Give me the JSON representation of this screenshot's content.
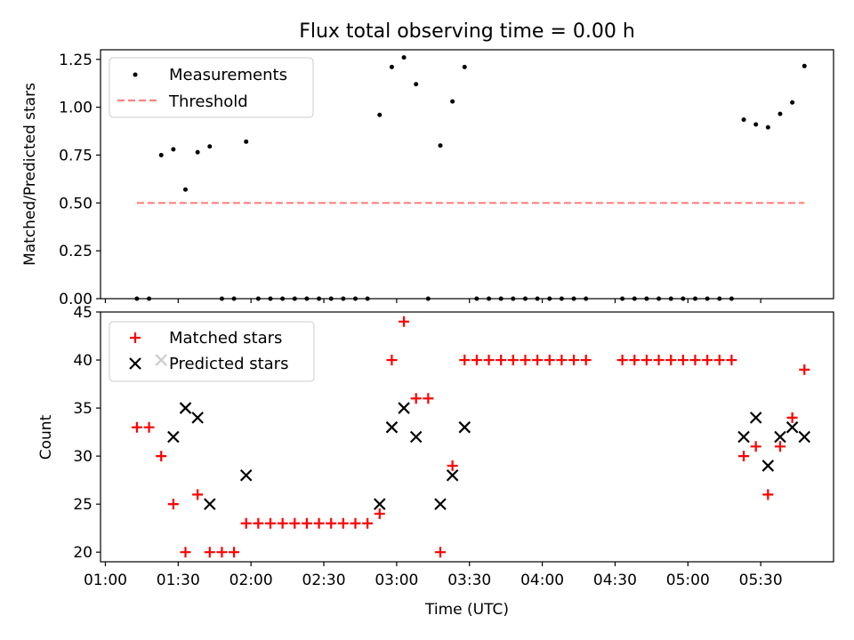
{
  "title": "Flux total observing time = 0.00 h",
  "chart_data": [
    {
      "type": "scatter",
      "title": "Flux total observing time = 0.00 h",
      "xlabel": "",
      "ylabel": "Matched/Predicted stars",
      "xlim": [
        "00:58",
        "06:00"
      ],
      "ylim": [
        0,
        1.3
      ],
      "yticks": [
        "0.00",
        "0.25",
        "0.50",
        "0.75",
        "1.00",
        "1.25"
      ],
      "legend": "top-left",
      "grid": false,
      "series": [
        {
          "name": "Measurements",
          "marker": "dot",
          "color": "#000000",
          "points": [
            [
              "01:13",
              0
            ],
            [
              "01:18",
              0
            ],
            [
              "01:23",
              0.75
            ],
            [
              "01:28",
              0.78
            ],
            [
              "01:33",
              0.57
            ],
            [
              "01:38",
              0.765
            ],
            [
              "01:43",
              0.795
            ],
            [
              "01:48",
              0
            ],
            [
              "01:53",
              0
            ],
            [
              "01:58",
              0.82
            ],
            [
              "02:03",
              0
            ],
            [
              "02:08",
              0
            ],
            [
              "02:13",
              0
            ],
            [
              "02:18",
              0
            ],
            [
              "02:23",
              0
            ],
            [
              "02:28",
              0
            ],
            [
              "02:33",
              0
            ],
            [
              "02:38",
              0
            ],
            [
              "02:43",
              0
            ],
            [
              "02:48",
              0
            ],
            [
              "02:53",
              0.96
            ],
            [
              "02:58",
              1.21
            ],
            [
              "03:03",
              1.26
            ],
            [
              "03:08",
              1.12
            ],
            [
              "03:13",
              0
            ],
            [
              "03:18",
              0.8
            ],
            [
              "03:23",
              1.03
            ],
            [
              "03:28",
              1.21
            ],
            [
              "03:33",
              0
            ],
            [
              "03:38",
              0
            ],
            [
              "03:43",
              0
            ],
            [
              "03:48",
              0
            ],
            [
              "03:53",
              0
            ],
            [
              "03:58",
              0
            ],
            [
              "04:03",
              0
            ],
            [
              "04:08",
              0
            ],
            [
              "04:13",
              0
            ],
            [
              "04:18",
              0
            ],
            [
              "04:33",
              0
            ],
            [
              "04:38",
              0
            ],
            [
              "04:43",
              0
            ],
            [
              "04:48",
              0
            ],
            [
              "04:53",
              0
            ],
            [
              "04:58",
              0
            ],
            [
              "05:03",
              0
            ],
            [
              "05:08",
              0
            ],
            [
              "05:13",
              0
            ],
            [
              "05:18",
              0
            ],
            [
              "05:23",
              0.935
            ],
            [
              "05:28",
              0.91
            ],
            [
              "05:33",
              0.895
            ],
            [
              "05:38",
              0.965
            ],
            [
              "05:43",
              1.025
            ],
            [
              "05:48",
              1.215
            ]
          ]
        },
        {
          "name": "Threshold",
          "type": "line",
          "dash": true,
          "color": "#ff8080",
          "points": [
            [
              "01:13",
              0.5
            ],
            [
              "05:48",
              0.5
            ]
          ]
        }
      ]
    },
    {
      "type": "scatter",
      "title": "",
      "xlabel": "Time (UTC)",
      "ylabel": "Count",
      "xlim": [
        "00:58",
        "06:00"
      ],
      "ylim": [
        19,
        45
      ],
      "yticks": [
        "20",
        "25",
        "30",
        "35",
        "40",
        "45"
      ],
      "xticks": [
        "01:00",
        "01:30",
        "02:00",
        "02:30",
        "03:00",
        "03:30",
        "04:00",
        "04:30",
        "05:00",
        "05:30"
      ],
      "legend": "top-left",
      "grid": false,
      "series": [
        {
          "name": "Matched stars",
          "marker": "plus",
          "color": "#ff0000",
          "points": [
            [
              "01:13",
              33
            ],
            [
              "01:18",
              33
            ],
            [
              "01:23",
              30
            ],
            [
              "01:28",
              25
            ],
            [
              "01:33",
              20
            ],
            [
              "01:38",
              26
            ],
            [
              "01:43",
              20
            ],
            [
              "01:48",
              20
            ],
            [
              "01:53",
              20
            ],
            [
              "01:58",
              23
            ],
            [
              "02:03",
              23
            ],
            [
              "02:08",
              23
            ],
            [
              "02:13",
              23
            ],
            [
              "02:18",
              23
            ],
            [
              "02:23",
              23
            ],
            [
              "02:28",
              23
            ],
            [
              "02:33",
              23
            ],
            [
              "02:38",
              23
            ],
            [
              "02:43",
              23
            ],
            [
              "02:48",
              23
            ],
            [
              "02:53",
              24
            ],
            [
              "02:58",
              40
            ],
            [
              "03:03",
              44
            ],
            [
              "03:08",
              36
            ],
            [
              "03:13",
              36
            ],
            [
              "03:18",
              20
            ],
            [
              "03:23",
              29
            ],
            [
              "03:28",
              40
            ],
            [
              "03:33",
              40
            ],
            [
              "03:38",
              40
            ],
            [
              "03:43",
              40
            ],
            [
              "03:48",
              40
            ],
            [
              "03:53",
              40
            ],
            [
              "03:58",
              40
            ],
            [
              "04:03",
              40
            ],
            [
              "04:08",
              40
            ],
            [
              "04:13",
              40
            ],
            [
              "04:18",
              40
            ],
            [
              "04:33",
              40
            ],
            [
              "04:38",
              40
            ],
            [
              "04:43",
              40
            ],
            [
              "04:48",
              40
            ],
            [
              "04:53",
              40
            ],
            [
              "04:58",
              40
            ],
            [
              "05:03",
              40
            ],
            [
              "05:08",
              40
            ],
            [
              "05:13",
              40
            ],
            [
              "05:18",
              40
            ],
            [
              "05:23",
              30
            ],
            [
              "05:28",
              31
            ],
            [
              "05:33",
              26
            ],
            [
              "05:38",
              31
            ],
            [
              "05:43",
              34
            ],
            [
              "05:48",
              39
            ]
          ]
        },
        {
          "name": "Predicted stars",
          "marker": "x",
          "color": "#000000",
          "points": [
            [
              "01:23",
              40
            ],
            [
              "01:28",
              32
            ],
            [
              "01:33",
              35
            ],
            [
              "01:38",
              34
            ],
            [
              "01:43",
              25
            ],
            [
              "01:58",
              28
            ],
            [
              "02:53",
              25
            ],
            [
              "02:58",
              33
            ],
            [
              "03:03",
              35
            ],
            [
              "03:08",
              32
            ],
            [
              "03:18",
              25
            ],
            [
              "03:23",
              28
            ],
            [
              "03:28",
              33
            ],
            [
              "05:23",
              32
            ],
            [
              "05:28",
              34
            ],
            [
              "05:33",
              29
            ],
            [
              "05:38",
              32
            ],
            [
              "05:43",
              33
            ],
            [
              "05:48",
              32
            ]
          ]
        }
      ]
    }
  ]
}
